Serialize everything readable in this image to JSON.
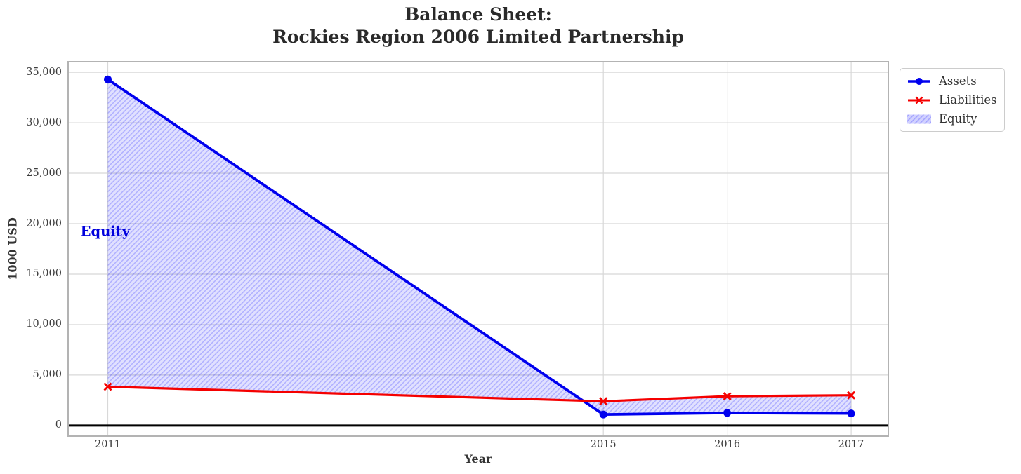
{
  "chart_data": {
    "type": "line",
    "title": "Balance Sheet:\nRockies Region 2006 Limited Partnership",
    "title_lines": [
      "Balance Sheet:",
      "Rockies Region 2006 Limited Partnership"
    ],
    "xlabel": "Year",
    "ylabel": "1000 USD",
    "x": [
      2011,
      2015,
      2016,
      2017
    ],
    "xtick_labels": [
      "2011",
      "2015",
      "2016",
      "2017"
    ],
    "series": [
      {
        "name": "Assets",
        "color": "#0000ee",
        "marker": "circle",
        "line_width": 3.8,
        "values": [
          34300,
          1100,
          1250,
          1200
        ]
      },
      {
        "name": "Liabilities",
        "color": "#f50000",
        "marker": "x",
        "line_width": 3.2,
        "values": [
          3850,
          2400,
          2900,
          3000
        ]
      }
    ],
    "fill_between": {
      "name": "Equity",
      "between": [
        "Assets",
        "Liabilities"
      ],
      "fill_color": "#0000ff",
      "fill_opacity": 0.12,
      "hatch": "//",
      "hatch_opacity": 0.22
    },
    "annotation": {
      "text": "Equity",
      "x": 2010.78,
      "y": 19200,
      "color": "#0000dd"
    },
    "xlim": [
      2010.68,
      2017.3
    ],
    "ylim": [
      -1050,
      36050
    ],
    "yticks": [
      0,
      5000,
      10000,
      15000,
      20000,
      25000,
      30000,
      35000
    ],
    "ytick_labels": [
      "0",
      "5,000",
      "10,000",
      "15,000",
      "20,000",
      "25,000",
      "30,000",
      "35,000"
    ],
    "grid": true,
    "zero_line": {
      "y": 0,
      "color": "#000000"
    },
    "legend": {
      "position": "upper-right-outside",
      "entries": [
        "Assets",
        "Liabilities",
        "Equity"
      ]
    }
  },
  "colors": {
    "grid": "#d8d8d8",
    "spine": "#b3b3b3",
    "title_text": "#2a2a2a",
    "tick_text": "#3d3d3d",
    "legend_text": "#333333"
  }
}
